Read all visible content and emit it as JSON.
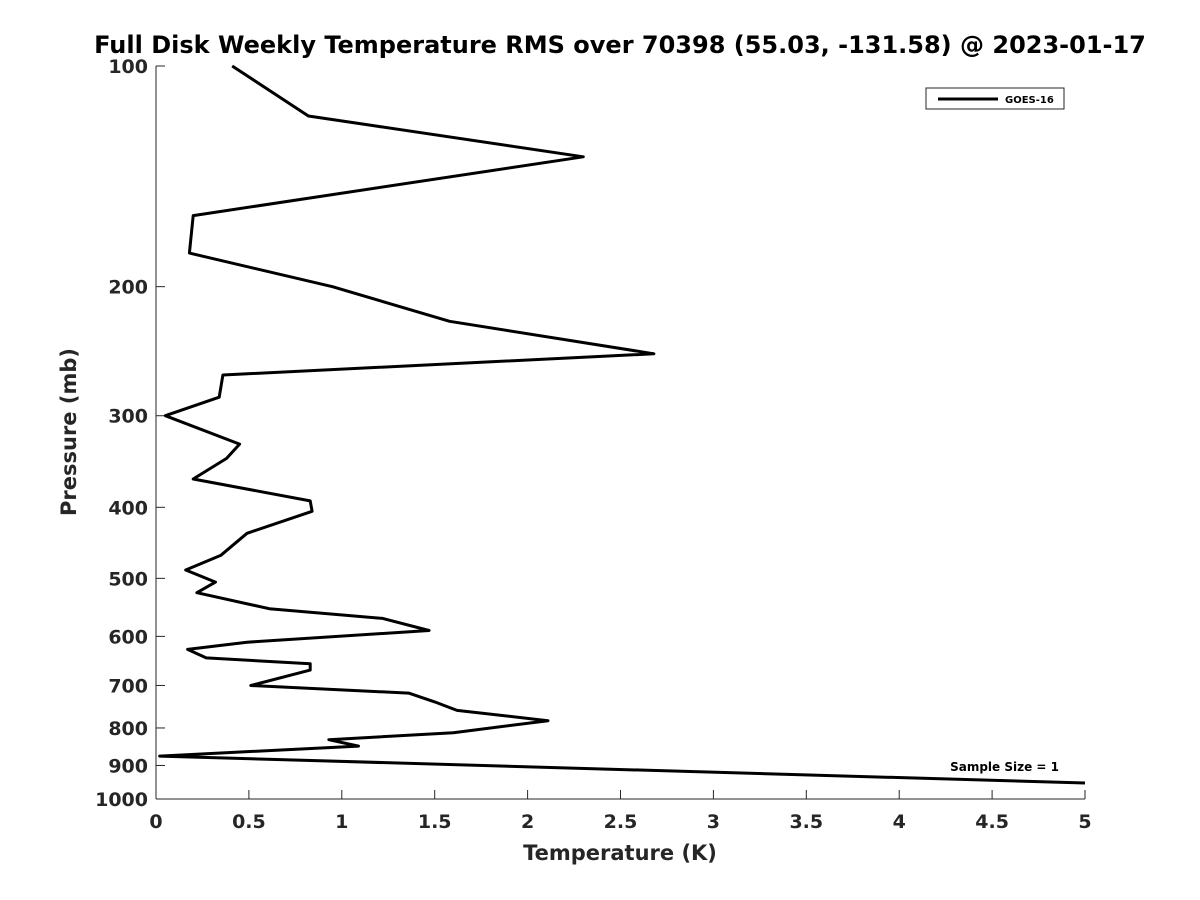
{
  "chart_data": {
    "type": "line",
    "title": "Full Disk Weekly Temperature RMS over 70398 (55.03, -131.58) @ 2023-01-17",
    "xlabel": "Temperature (K)",
    "ylabel": "Pressure (mb)",
    "xlim": [
      0,
      5
    ],
    "ylim": [
      1000,
      100
    ],
    "yscale": "log",
    "y_reversed": true,
    "x_ticks": [
      "0",
      "0.5",
      "1",
      "1.5",
      "2",
      "2.5",
      "3",
      "3.5",
      "4",
      "4.5",
      "5"
    ],
    "y_ticks": [
      "100",
      "200",
      "300",
      "400",
      "500",
      "600",
      "700",
      "800",
      "900",
      "1000"
    ],
    "grid": false,
    "legend_position": "top-right",
    "annotation": "Sample Size = 1",
    "series": [
      {
        "name": "GOES-16",
        "color": "#000000",
        "points": [
          [
            0.41,
            100
          ],
          [
            0.82,
            117
          ],
          [
            2.3,
            133
          ],
          [
            0.2,
            160
          ],
          [
            0.18,
            180
          ],
          [
            0.95,
            200
          ],
          [
            1.58,
            223
          ],
          [
            2.68,
            247
          ],
          [
            0.36,
            264
          ],
          [
            0.34,
            283
          ],
          [
            0.05,
            300
          ],
          [
            0.45,
            328
          ],
          [
            0.38,
            343
          ],
          [
            0.2,
            366
          ],
          [
            0.83,
            392
          ],
          [
            0.84,
            405
          ],
          [
            0.49,
            434
          ],
          [
            0.35,
            465
          ],
          [
            0.16,
            487
          ],
          [
            0.32,
            506
          ],
          [
            0.22,
            523
          ],
          [
            0.61,
            550
          ],
          [
            1.22,
            567
          ],
          [
            1.47,
            589
          ],
          [
            0.49,
            611
          ],
          [
            0.17,
            625
          ],
          [
            0.27,
            642
          ],
          [
            0.83,
            654
          ],
          [
            0.83,
            667
          ],
          [
            0.51,
            700
          ],
          [
            1.36,
            717
          ],
          [
            1.5,
            737
          ],
          [
            1.62,
            757
          ],
          [
            2.11,
            782
          ],
          [
            1.6,
            812
          ],
          [
            0.93,
            830
          ],
          [
            1.09,
            847
          ],
          [
            0.02,
            874
          ],
          [
            5.0,
            951
          ]
        ]
      }
    ]
  }
}
